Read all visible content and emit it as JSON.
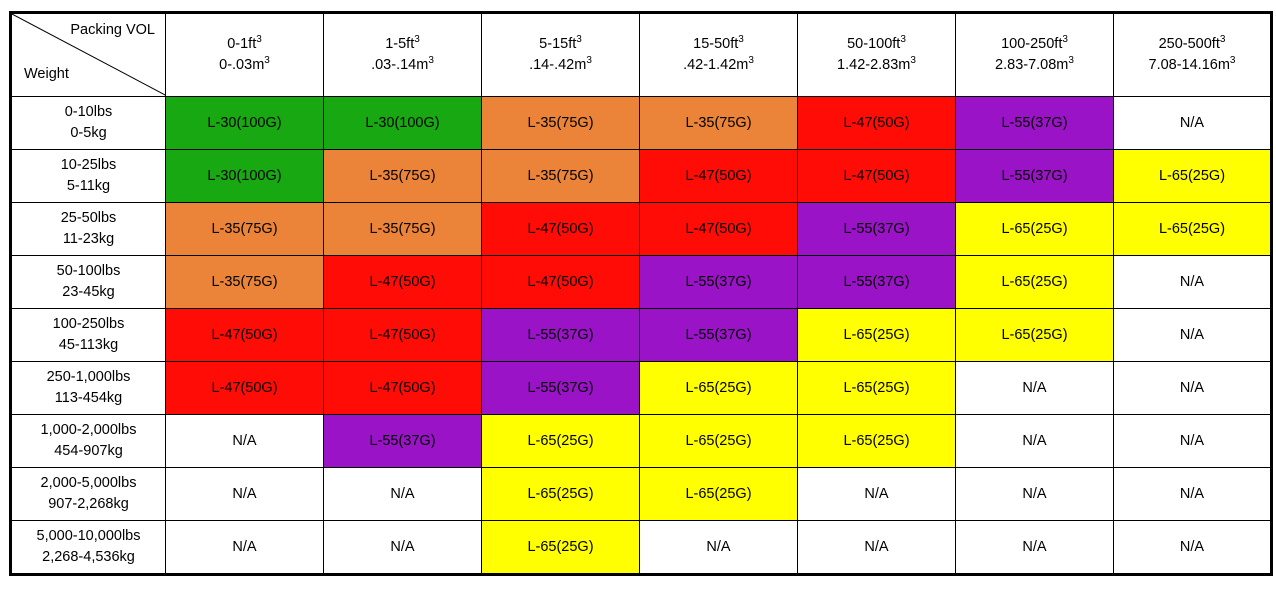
{
  "corner": {
    "top_label": "Packing VOL",
    "bottom_label": "Weight"
  },
  "columns": [
    {
      "ft": "0-1ft",
      "m": "0-.03m"
    },
    {
      "ft": "1-5ft",
      "m": ".03-.14m"
    },
    {
      "ft": "5-15ft",
      "m": ".14-.42m"
    },
    {
      "ft": "15-50ft",
      "m": ".42-1.42m"
    },
    {
      "ft": "50-100ft",
      "m": "1.42-2.83m"
    },
    {
      "ft": "100-250ft",
      "m": "2.83-7.08m"
    },
    {
      "ft": "250-500ft",
      "m": "7.08-14.16m"
    }
  ],
  "unit_exponent": "3",
  "rows": [
    {
      "lbs": "0-10lbs",
      "kg": "0-5kg",
      "cells": [
        "L-30(100G)",
        "L-30(100G)",
        "L-35(75G)",
        "L-35(75G)",
        "L-47(50G)",
        "L-55(37G)",
        "N/A"
      ]
    },
    {
      "lbs": "10-25lbs",
      "kg": "5-11kg",
      "cells": [
        "L-30(100G)",
        "L-35(75G)",
        "L-35(75G)",
        "L-47(50G)",
        "L-47(50G)",
        "L-55(37G)",
        "L-65(25G)"
      ]
    },
    {
      "lbs": "25-50lbs",
      "kg": "11-23kg",
      "cells": [
        "L-35(75G)",
        "L-35(75G)",
        "L-47(50G)",
        "L-47(50G)",
        "L-55(37G)",
        "L-65(25G)",
        "L-65(25G)"
      ]
    },
    {
      "lbs": "50-100lbs",
      "kg": "23-45kg",
      "cells": [
        "L-35(75G)",
        "L-47(50G)",
        "L-47(50G)",
        "L-55(37G)",
        "L-55(37G)",
        "L-65(25G)",
        "N/A"
      ]
    },
    {
      "lbs": "100-250lbs",
      "kg": "45-113kg",
      "cells": [
        "L-47(50G)",
        "L-47(50G)",
        "L-55(37G)",
        "L-55(37G)",
        "L-65(25G)",
        "L-65(25G)",
        "N/A"
      ]
    },
    {
      "lbs": "250-1,000lbs",
      "kg": "113-454kg",
      "cells": [
        "L-47(50G)",
        "L-47(50G)",
        "L-55(37G)",
        "L-65(25G)",
        "L-65(25G)",
        "N/A",
        "N/A"
      ]
    },
    {
      "lbs": "1,000-2,000lbs",
      "kg": "454-907kg",
      "cells": [
        "N/A",
        "L-55(37G)",
        "L-65(25G)",
        "L-65(25G)",
        "L-65(25G)",
        "N/A",
        "N/A"
      ]
    },
    {
      "lbs": "2,000-5,000lbs",
      "kg": "907-2,268kg",
      "cells": [
        "N/A",
        "N/A",
        "L-65(25G)",
        "L-65(25G)",
        "N/A",
        "N/A",
        "N/A"
      ]
    },
    {
      "lbs": "5,000-10,000lbs",
      "kg": "2,268-4,536kg",
      "cells": [
        "N/A",
        "N/A",
        "L-65(25G)",
        "N/A",
        "N/A",
        "N/A",
        "N/A"
      ]
    }
  ],
  "cell_colors": {
    "L-30(100G)": "#18a812",
    "L-35(75G)": "#eb8339",
    "L-47(50G)": "#ff0c06",
    "L-55(37G)": "#9a13c6",
    "L-65(25G)": "#ffff00",
    "N/A": "#ffffff"
  }
}
